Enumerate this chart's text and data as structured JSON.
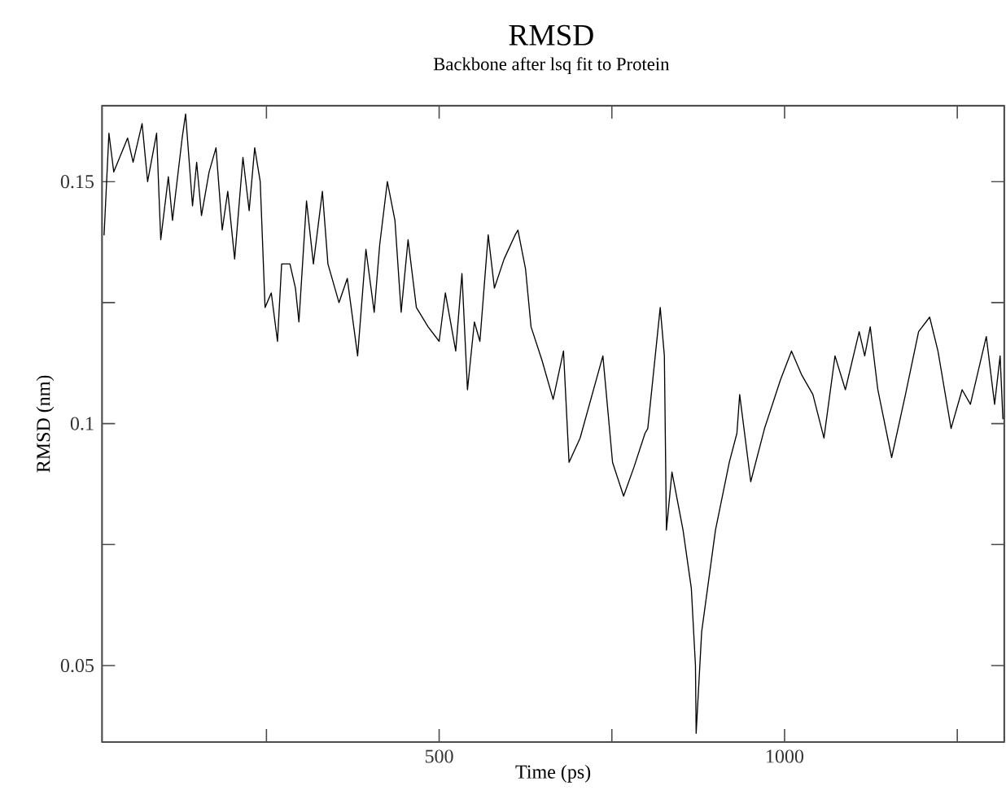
{
  "chart_data": {
    "type": "line",
    "title": "RMSD",
    "subtitle": "Backbone after lsq fit to Protein",
    "xlabel": "Time (ps)",
    "ylabel": "RMSD (nm)",
    "xlim": [
      12,
      1318
    ],
    "ylim": [
      0.0342,
      0.1657
    ],
    "xticks": [
      {
        "value": 250,
        "label": null
      },
      500,
      {
        "value": 750,
        "label": null
      },
      1000,
      {
        "value": 1250,
        "label": null
      }
    ],
    "yticks": [
      0.05,
      {
        "value": 0.075,
        "label": null
      },
      0.1,
      {
        "value": 0.125,
        "label": null
      },
      0.15
    ],
    "marker": "none",
    "line_style": "solid",
    "series": [
      {
        "color": "#000000",
        "x": [
          15,
          22,
          29,
          49,
          57,
          70,
          78,
          91,
          97,
          108,
          114,
          128,
          133,
          143,
          149,
          156,
          167,
          177,
          186,
          194,
          204,
          216,
          225,
          233,
          241,
          248,
          257,
          266,
          272,
          284,
          292,
          297,
          308,
          318,
          331,
          339,
          355,
          367,
          382,
          394,
          406,
          414,
          425,
          436,
          445,
          455,
          467,
          484,
          500,
          509,
          524,
          533,
          541,
          551,
          559,
          571,
          580,
          594,
          610,
          614,
          625,
          633,
          649,
          665,
          680,
          688,
          704,
          737,
          751,
          767,
          782,
          798,
          802,
          820,
          826,
          829,
          837,
          853,
          865,
          871,
          872,
          880,
          900,
          920,
          931,
          935,
          951,
          971,
          994,
          1010,
          1025,
          1041,
          1057,
          1073,
          1088,
          1108,
          1116,
          1124,
          1135,
          1155,
          1175,
          1194,
          1210,
          1222,
          1241,
          1257,
          1269,
          1292,
          1304,
          1312,
          1316
        ],
        "values": [
          0.139,
          0.16,
          0.152,
          0.159,
          0.154,
          0.162,
          0.15,
          0.16,
          0.138,
          0.151,
          0.142,
          0.159,
          0.164,
          0.145,
          0.154,
          0.143,
          0.152,
          0.157,
          0.14,
          0.148,
          0.134,
          0.155,
          0.144,
          0.157,
          0.15,
          0.124,
          0.127,
          0.117,
          0.133,
          0.133,
          0.128,
          0.121,
          0.146,
          0.133,
          0.148,
          0.133,
          0.125,
          0.13,
          0.114,
          0.136,
          0.123,
          0.137,
          0.15,
          0.142,
          0.123,
          0.138,
          0.124,
          0.12,
          0.117,
          0.127,
          0.115,
          0.131,
          0.107,
          0.121,
          0.117,
          0.139,
          0.128,
          0.134,
          0.139,
          0.14,
          0.132,
          0.12,
          0.113,
          0.105,
          0.115,
          0.092,
          0.097,
          0.114,
          0.092,
          0.085,
          0.091,
          0.098,
          0.099,
          0.124,
          0.114,
          0.078,
          0.09,
          0.078,
          0.066,
          0.05,
          0.036,
          0.057,
          0.078,
          0.092,
          0.098,
          0.106,
          0.088,
          0.099,
          0.109,
          0.115,
          0.11,
          0.106,
          0.097,
          0.114,
          0.107,
          0.119,
          0.114,
          0.12,
          0.107,
          0.093,
          0.106,
          0.119,
          0.122,
          0.115,
          0.099,
          0.107,
          0.104,
          0.118,
          0.104,
          0.114,
          0.101
        ]
      }
    ]
  }
}
